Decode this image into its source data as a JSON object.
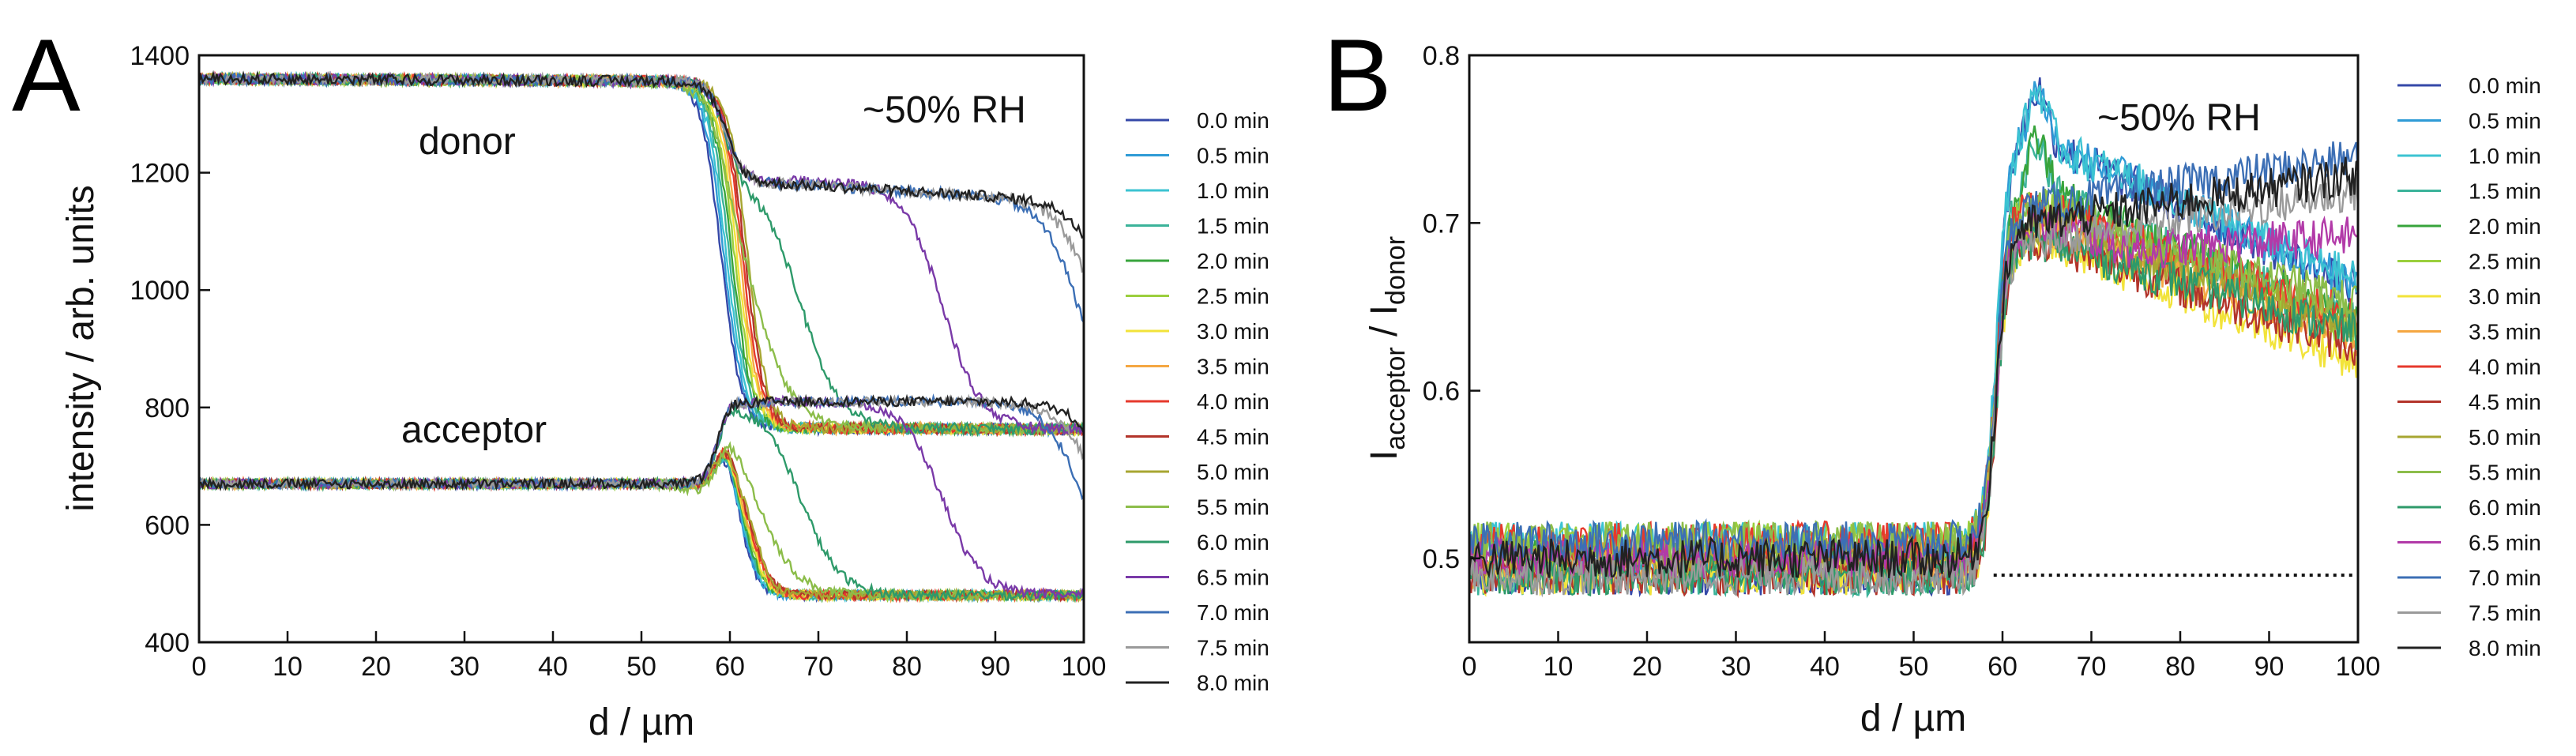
{
  "chart_data": [
    {
      "panel": "A",
      "type": "line",
      "title": "",
      "xlabel": "d / µm",
      "ylabel": "intensity / arb. units",
      "xlim": [
        0,
        100
      ],
      "ylim": [
        400,
        1400
      ],
      "xticks": [
        "0",
        "10",
        "20",
        "30",
        "40",
        "50",
        "60",
        "70",
        "80",
        "90",
        "100"
      ],
      "yticks": [
        "400",
        "600",
        "800",
        "1000",
        "1200",
        "1400"
      ],
      "annotations": {
        "condition": "~50% RH",
        "donor": "donor",
        "acceptor": "acceptor"
      },
      "legend_position": "right",
      "front_positions_um": [
        59,
        59.3,
        59.6,
        59.9,
        60.2,
        60.5,
        60.8,
        61.1,
        61.4,
        61.7,
        62,
        63,
        68,
        84,
        100,
        102,
        104
      ],
      "donor": {
        "baseline": 1360,
        "flat_high": 770,
        "behind_front": 1190
      },
      "acceptor": {
        "baseline": 670,
        "peak": 730,
        "flat_low": 480,
        "behind_front": 810
      },
      "series": [
        {
          "name": "0.0 min",
          "color": "#3548a8"
        },
        {
          "name": "0.5 min",
          "color": "#2f9bd6"
        },
        {
          "name": "1.0 min",
          "color": "#3cc3d2"
        },
        {
          "name": "1.5 min",
          "color": "#3bb39a"
        },
        {
          "name": "2.0 min",
          "color": "#38a43c"
        },
        {
          "name": "2.5 min",
          "color": "#9bcf3d"
        },
        {
          "name": "3.0 min",
          "color": "#f2e33a"
        },
        {
          "name": "3.5 min",
          "color": "#f5a742"
        },
        {
          "name": "4.0 min",
          "color": "#e6392c"
        },
        {
          "name": "4.5 min",
          "color": "#b3342a"
        },
        {
          "name": "5.0 min",
          "color": "#a7a632"
        },
        {
          "name": "5.5 min",
          "color": "#8cbd4a"
        },
        {
          "name": "6.0 min",
          "color": "#2e9a6a"
        },
        {
          "name": "6.5 min",
          "color": "#7a3aa8"
        },
        {
          "name": "7.0 min",
          "color": "#3c6fb5"
        },
        {
          "name": "7.5 min",
          "color": "#9a9a9a"
        },
        {
          "name": "8.0 min",
          "color": "#222222"
        }
      ]
    },
    {
      "panel": "B",
      "type": "line",
      "title": "",
      "xlabel": "d / µm",
      "ylabel_main": "I",
      "ylabel_sub1": "acceptor",
      "ylabel_sep": " / I",
      "ylabel_sub2": "donor",
      "xlim": [
        0,
        100
      ],
      "ylim": [
        0.45,
        0.8
      ],
      "xticks": [
        "0",
        "10",
        "20",
        "30",
        "40",
        "50",
        "60",
        "70",
        "80",
        "90",
        "100"
      ],
      "yticks": [
        "0.5",
        "0.6",
        "0.7",
        "0.8"
      ],
      "annotations": {
        "condition": "~50% RH"
      },
      "baseline_ratio": 0.49,
      "rise_position_um": 59,
      "legend_position": "right",
      "series": [
        {
          "name": "0.0 min",
          "color": "#3548a8"
        },
        {
          "name": "0.5 min",
          "color": "#2f9bd6"
        },
        {
          "name": "1.0 min",
          "color": "#3cc3d2"
        },
        {
          "name": "1.5 min",
          "color": "#3bb39a"
        },
        {
          "name": "2.0 min",
          "color": "#38a43c"
        },
        {
          "name": "2.5 min",
          "color": "#9bcf3d"
        },
        {
          "name": "3.0 min",
          "color": "#f2e33a"
        },
        {
          "name": "3.5 min",
          "color": "#f5a742"
        },
        {
          "name": "4.0 min",
          "color": "#e6392c"
        },
        {
          "name": "4.5 min",
          "color": "#b3342a"
        },
        {
          "name": "5.0 min",
          "color": "#a7a632"
        },
        {
          "name": "5.5 min",
          "color": "#8cbd4a"
        },
        {
          "name": "6.0 min",
          "color": "#2e9a6a"
        },
        {
          "name": "6.5 min",
          "color": "#b23aa8"
        },
        {
          "name": "7.0 min",
          "color": "#3c6fb5"
        },
        {
          "name": "7.5 min",
          "color": "#9a9a9a"
        },
        {
          "name": "8.0 min",
          "color": "#222222"
        }
      ]
    }
  ]
}
